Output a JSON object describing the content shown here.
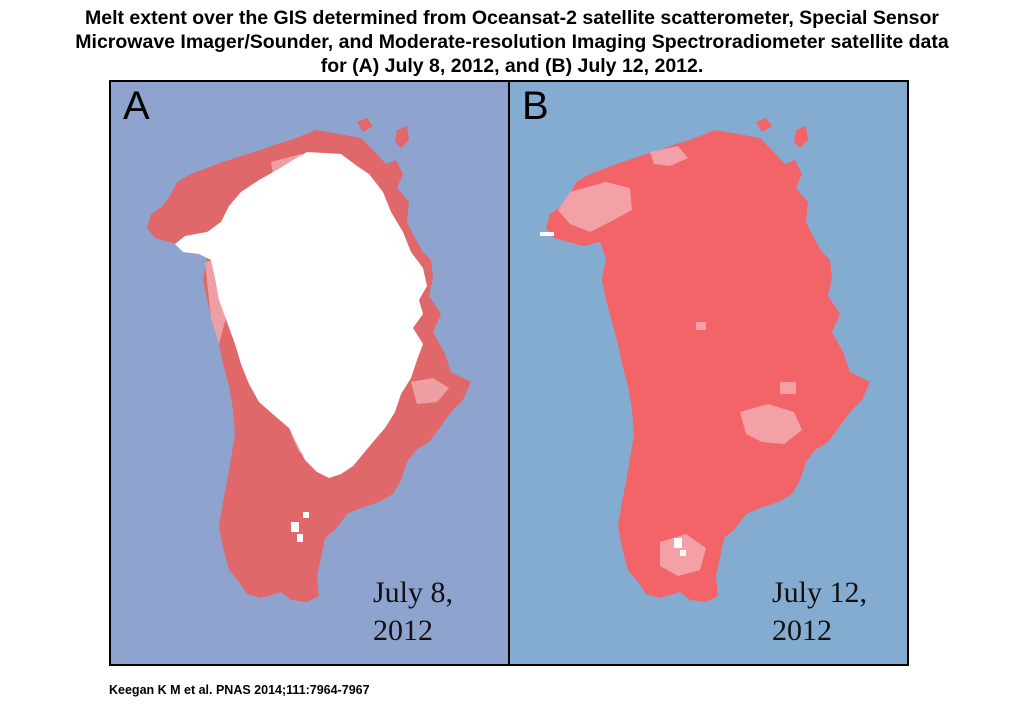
{
  "title": {
    "line1": "Melt extent over the GIS  determined from Oceansat-2 satellite scatterometer, Special Sensor",
    "line2": "Microwave Imager/Sounder, and Moderate-resolution Imaging Spectroradiometer satellite data",
    "line3": "for (A) July 8, 2012, and (B) July 12, 2012."
  },
  "panels": [
    {
      "letter": "A",
      "date_line1": "July 8,",
      "date_line2": "2012"
    },
    {
      "letter": "B",
      "date_line1": "July 12,",
      "date_line2": "2012"
    }
  ],
  "citation": "Keegan  K M et al. PNAS 2014;111:7964-7967",
  "colors": {
    "ocean_a": "#8ea3cd",
    "ocean_b": "#84acd0",
    "melt_dark": "#e26a6a",
    "melt_light": "#f0a3a8",
    "no_melt": "#ffffff"
  }
}
